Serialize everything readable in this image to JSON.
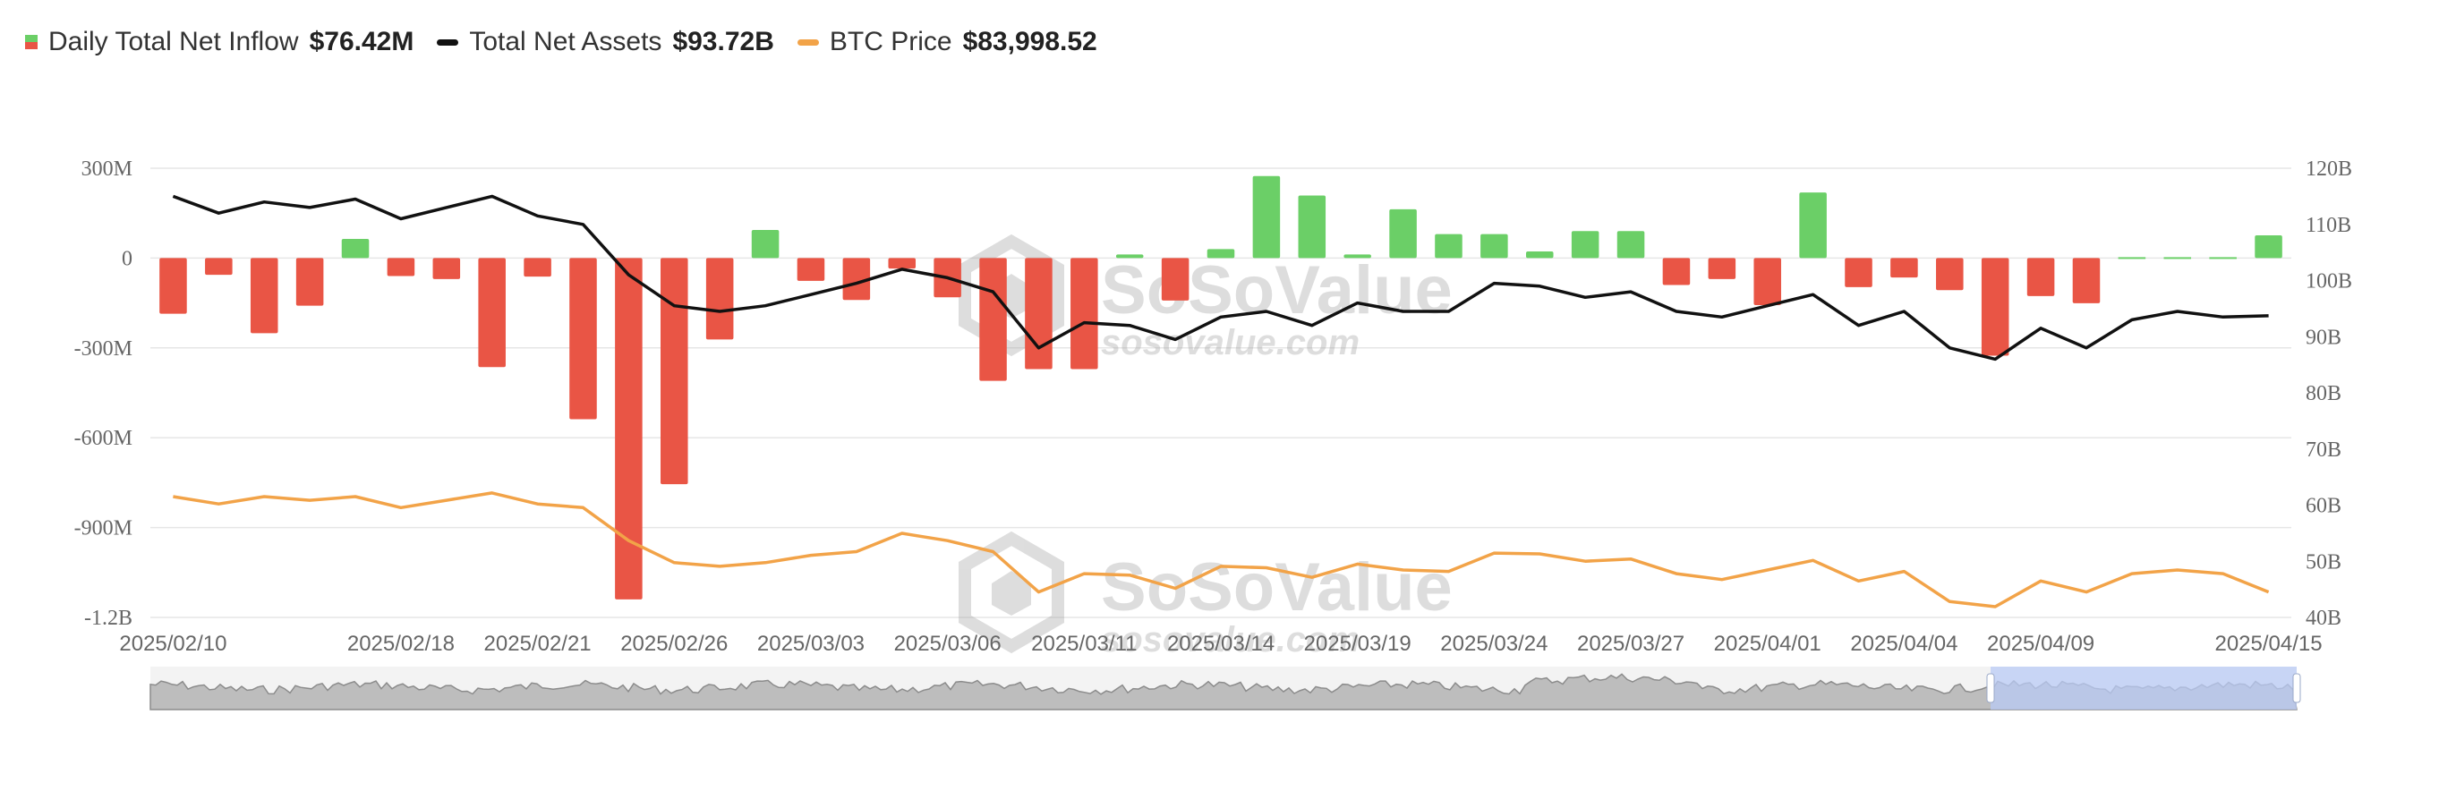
{
  "legend": {
    "inflow_label": "Daily Total Net Inflow",
    "inflow_value": "$76.42M",
    "assets_label": "Total Net Assets",
    "assets_value": "$93.72B",
    "btc_label": "BTC Price",
    "btc_value": "$83,998.52"
  },
  "watermark": {
    "brand": "SoSoValue",
    "domain": "sosovalue.com"
  },
  "colors": {
    "positive": "#6bcf67",
    "negative": "#e95545",
    "assets_line": "#111111",
    "btc_line": "#f2a348",
    "grid": "#e6e6e6",
    "navigator_selection": "#b9cbf5"
  },
  "chart_data": {
    "type": "bar",
    "y_left_ticks": [
      "300M",
      "0",
      "-300M",
      "-600M",
      "-900M",
      "-1.2B"
    ],
    "y_right_ticks": [
      "120B",
      "110B",
      "100B",
      "90B",
      "80B",
      "70B",
      "60B",
      "50B",
      "40B"
    ],
    "x_tick_labels": [
      {
        "index": 0,
        "label": "2025/02/10"
      },
      {
        "index": 5,
        "label": "2025/02/18"
      },
      {
        "index": 8,
        "label": "2025/02/21"
      },
      {
        "index": 11,
        "label": "2025/02/26"
      },
      {
        "index": 14,
        "label": "2025/03/03"
      },
      {
        "index": 17,
        "label": "2025/03/06"
      },
      {
        "index": 20,
        "label": "2025/03/11"
      },
      {
        "index": 23,
        "label": "2025/03/14"
      },
      {
        "index": 26,
        "label": "2025/03/19"
      },
      {
        "index": 29,
        "label": "2025/03/24"
      },
      {
        "index": 32,
        "label": "2025/03/27"
      },
      {
        "index": 35,
        "label": "2025/04/01"
      },
      {
        "index": 38,
        "label": "2025/04/04"
      },
      {
        "index": 41,
        "label": "2025/04/09"
      },
      {
        "index": 46,
        "label": "2025/04/15"
      }
    ],
    "ylim_left": [
      -1200,
      300
    ],
    "ylim_right": [
      40,
      120
    ],
    "inflow_millions": [
      -186,
      -56,
      -251,
      -159,
      64,
      -60,
      -70,
      -364,
      -62,
      -538,
      -1140,
      -755,
      -272,
      94,
      -76,
      -140,
      -35,
      -131,
      -410,
      -371,
      -371,
      12,
      -142,
      30,
      274,
      209,
      12,
      163,
      80,
      80,
      22,
      90,
      90,
      -90,
      -70,
      -157,
      219,
      -97,
      -65,
      -107,
      -326,
      -127,
      -151,
      0,
      0,
      0,
      76
    ],
    "net_assets_billions": [
      115,
      112,
      114,
      113,
      114.5,
      111,
      113,
      115,
      111.5,
      110,
      101,
      95.5,
      94.5,
      95.5,
      97.5,
      99.5,
      102,
      100.5,
      98,
      88,
      92.5,
      92,
      89.5,
      93.5,
      94.5,
      92,
      96,
      94.5,
      94.5,
      99.5,
      99,
      97,
      98,
      94.5,
      93.5,
      95.5,
      97.5,
      92,
      94.5,
      88,
      86,
      91.5,
      88,
      93,
      94.5,
      93.5,
      93.72
    ],
    "btc_price_thousands": [
      97,
      96,
      97,
      96.5,
      97,
      95.5,
      96.5,
      97.5,
      96,
      95.5,
      91,
      88,
      87.5,
      88,
      89,
      89.5,
      92,
      91,
      89.5,
      84,
      86.5,
      86.3,
      84.5,
      87.5,
      87.3,
      86,
      87.8,
      87,
      86.8,
      89.3,
      89.2,
      88.2,
      88.5,
      86.5,
      85.7,
      87,
      88.3,
      85.5,
      86.8,
      82.7,
      82,
      85.5,
      84,
      86.5,
      87,
      86.5,
      84
    ]
  }
}
